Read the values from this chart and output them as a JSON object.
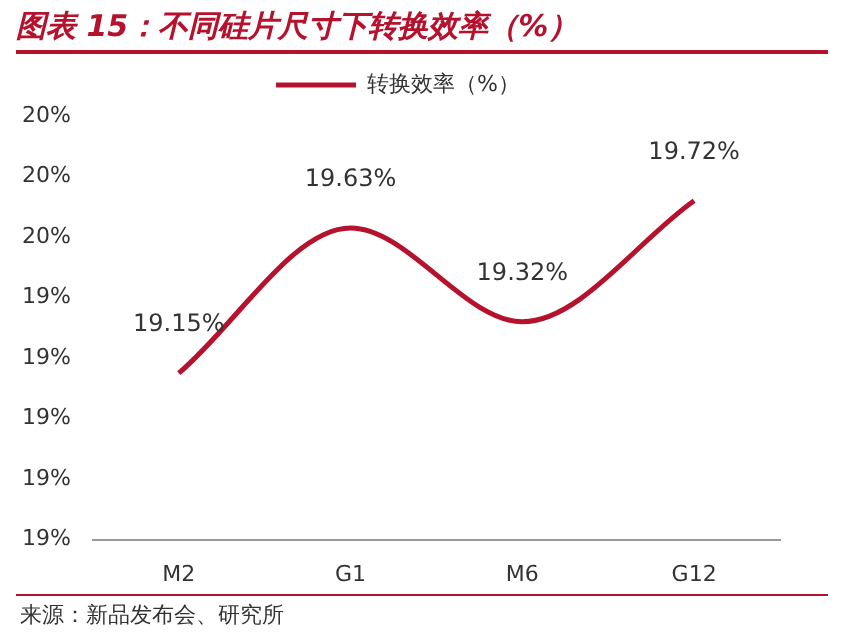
{
  "chart_data": {
    "type": "line",
    "title": "图表 15：不同硅片尺寸下转换效率（%）",
    "categories": [
      "M2",
      "G1",
      "M6",
      "G12"
    ],
    "series": [
      {
        "name": "转换效率（%）",
        "color": "#b5122e",
        "values": [
          19.15,
          19.63,
          19.32,
          19.72
        ]
      }
    ],
    "value_labels": [
      "19.15%",
      "19.63%",
      "19.32%",
      "19.72%"
    ],
    "ylim": [
      18.6,
      20.0
    ],
    "yticks": [
      {
        "value": 18.6,
        "label": "19%"
      },
      {
        "value": 18.8,
        "label": "19%"
      },
      {
        "value": 19.0,
        "label": "19%"
      },
      {
        "value": 19.2,
        "label": "19%"
      },
      {
        "value": 19.4,
        "label": "19%"
      },
      {
        "value": 19.6,
        "label": "20%"
      },
      {
        "value": 19.8,
        "label": "20%"
      },
      {
        "value": 20.0,
        "label": "20%"
      }
    ],
    "legend": "top",
    "grid": false,
    "marker": "none",
    "line_style": "solid",
    "annotations": [
      "来源：新品发布会、研究所"
    ]
  }
}
